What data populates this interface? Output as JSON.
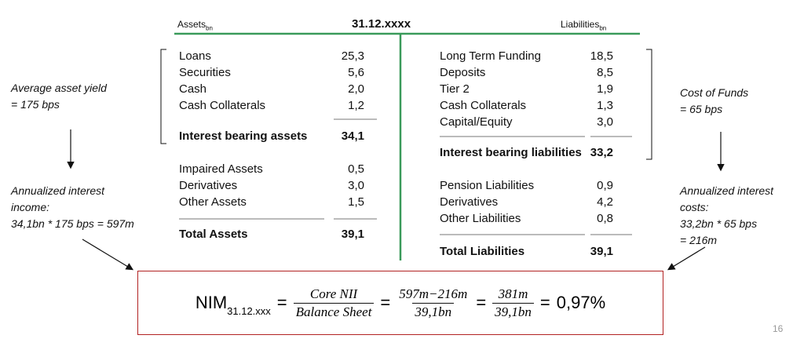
{
  "header": {
    "assets_label": "Assets",
    "assets_unit": "bn",
    "date": "31.12.xxxx",
    "liabilities_label": "Liabilities",
    "liabilities_unit": "bn"
  },
  "assets": {
    "interest_bearing": [
      [
        "Loans",
        "25,3"
      ],
      [
        "Securities",
        "5,6"
      ],
      [
        "Cash",
        "2,0"
      ],
      [
        "Cash Collaterals",
        "1,2"
      ]
    ],
    "subtotal": [
      "Interest bearing assets",
      "34,1"
    ],
    "other": [
      [
        "Impaired Assets",
        "0,5"
      ],
      [
        "Derivatives",
        "3,0"
      ],
      [
        "Other Assets",
        "1,5"
      ]
    ],
    "total": [
      "Total Assets",
      "39,1"
    ]
  },
  "liabilities": {
    "interest_bearing": [
      [
        "Long Term Funding",
        "18,5"
      ],
      [
        "Deposits",
        "8,5"
      ],
      [
        "Tier 2",
        "1,9"
      ],
      [
        "Cash Collaterals",
        "1,3"
      ],
      [
        "Capital/Equity",
        "3,0"
      ]
    ],
    "subtotal": [
      "Interest bearing liabilities",
      "33,2"
    ],
    "other": [
      [
        "Pension Liabilities",
        "0,9"
      ],
      [
        "Derivatives",
        "4,2"
      ],
      [
        "Other Liabilities",
        "0,8"
      ]
    ],
    "total": [
      "Total Liabilities",
      "39,1"
    ]
  },
  "left_notes": {
    "yield": [
      "Average asset yield",
      "= 175 bps"
    ],
    "income": [
      "Annualized interest",
      "income:",
      "34,1bn * 175 bps = 597m"
    ]
  },
  "right_notes": {
    "cost": [
      "Cost of Funds",
      "= 65 bps"
    ],
    "costs": [
      "Annualized interest",
      "costs:",
      "33,2bn * 65 bps",
      "= 216m"
    ]
  },
  "formula": {
    "nim": "NIM",
    "nim_sub": "31.12.xxx",
    "equals": "=",
    "fraction_1": [
      "Core NII",
      "Balance Sheet"
    ],
    "fraction_2": [
      "597m−216m",
      "39,1bn"
    ],
    "fraction_3": [
      "381m",
      "39,1bn"
    ],
    "result": "0,97%"
  },
  "page_number": "16"
}
